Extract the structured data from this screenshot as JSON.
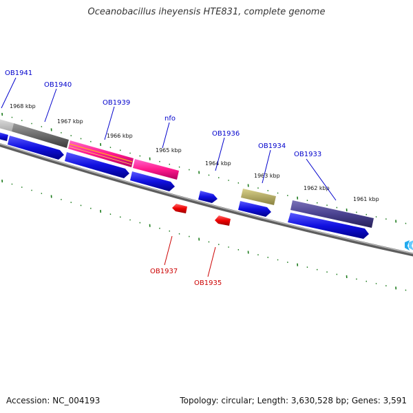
{
  "title": "Oceanobacillus iheyensis HTE831, complete genome",
  "footer": {
    "accession": "Accession: NC_004193",
    "summary": "Topology: circular; Length: 3,630,528 bp; Genes: 3,591"
  },
  "colors": {
    "forward_gene_label": "#0000cc",
    "reverse_gene_label": "#cc0000",
    "tick": "#1a7a1a",
    "backbone": "#888888",
    "cds_arrow": "#1010e0",
    "reverse_arrow": "#ee0000"
  },
  "scale_ticks": [
    "1968 kbp",
    "1967 kbp",
    "1966 kbp",
    "1965 kbp",
    "1964 kbp",
    "1963 kbp",
    "1962 kbp",
    "1961 kbp"
  ],
  "forward_genes": [
    "OB1941",
    "OB1940",
    "OB1939",
    "nfo",
    "OB1936",
    "OB1934",
    "OB1933"
  ],
  "reverse_genes": [
    "OB1937",
    "OB1935"
  ]
}
